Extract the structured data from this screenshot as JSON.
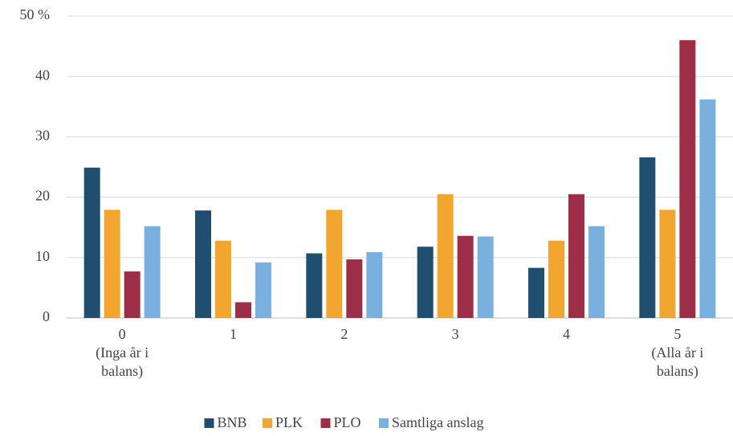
{
  "chart_data": {
    "type": "bar",
    "categories": [
      [
        "0",
        "(Inga år i",
        "balans)"
      ],
      [
        "1"
      ],
      [
        "2"
      ],
      [
        "3"
      ],
      [
        "4"
      ],
      [
        "5",
        "(Alla år i",
        "balans)"
      ]
    ],
    "series": [
      {
        "name": "BNB",
        "color": "#1f4e6e",
        "values": [
          24.9,
          17.8,
          10.7,
          11.8,
          8.3,
          26.6
        ]
      },
      {
        "name": "PLK",
        "color": "#f2a630",
        "values": [
          17.9,
          12.8,
          17.9,
          20.5,
          12.8,
          17.9
        ]
      },
      {
        "name": "PLO",
        "color": "#9c2f47",
        "values": [
          7.7,
          2.6,
          9.7,
          13.6,
          20.5,
          46.0
        ]
      },
      {
        "name": "Samtliga anslag",
        "color": "#79b0dd",
        "values": [
          15.2,
          9.2,
          10.9,
          13.5,
          15.2,
          36.2
        ]
      }
    ],
    "ylim": [
      0,
      50
    ],
    "yticks": [
      0,
      10,
      20,
      30,
      40,
      {
        "value": 50,
        "label": "50 %"
      }
    ],
    "grid": true,
    "legend": "bottom"
  }
}
